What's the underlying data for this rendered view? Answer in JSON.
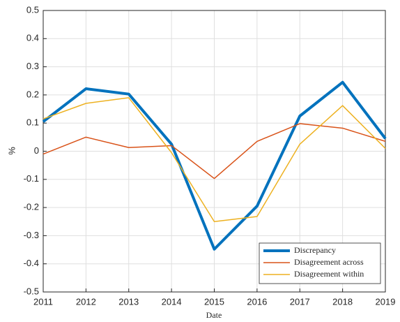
{
  "chart_data": {
    "type": "line",
    "xlabel": "Date",
    "ylabel": "%",
    "x": [
      2011,
      2012,
      2013,
      2014,
      2015,
      2016,
      2017,
      2018,
      2019
    ],
    "series": [
      {
        "name": "Discrepancy",
        "color": "#0072bd",
        "values": [
          0.105,
          0.222,
          0.203,
          0.025,
          -0.348,
          -0.195,
          0.125,
          0.245,
          0.045
        ]
      },
      {
        "name": "Disagreement across",
        "color": "#d95319",
        "values": [
          -0.01,
          0.05,
          0.013,
          0.02,
          -0.097,
          0.035,
          0.098,
          0.082,
          0.035
        ]
      },
      {
        "name": "Disagreement within",
        "color": "#edb120",
        "values": [
          0.115,
          0.17,
          0.19,
          -0.005,
          -0.25,
          -0.232,
          0.025,
          0.162,
          0.01
        ]
      }
    ],
    "xlim": [
      2011,
      2019
    ],
    "xticks": [
      2011,
      2012,
      2013,
      2014,
      2015,
      2016,
      2017,
      2018,
      2019
    ],
    "ylim": [
      -0.5,
      0.5
    ],
    "yticks": [
      -0.5,
      -0.4,
      -0.3,
      -0.2,
      -0.1,
      0,
      0.1,
      0.2,
      0.3,
      0.4,
      0.5
    ],
    "grid": true,
    "legend": "lower right"
  }
}
